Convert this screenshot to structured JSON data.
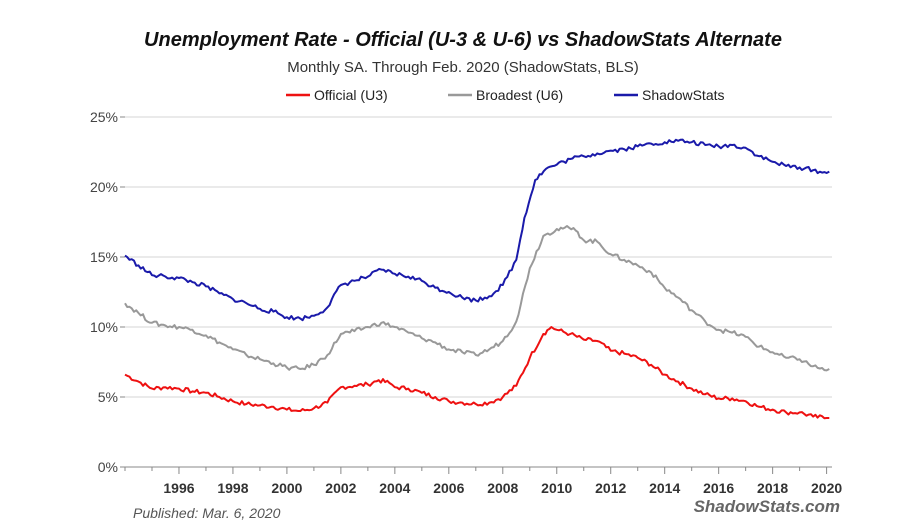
{
  "chart_data": {
    "type": "line",
    "title": "Unemployment Rate - Official (U-3 & U-6) vs ShadowStats Alternate",
    "subtitle": "Monthly SA. Through Feb. 2020  (ShadowStats, BLS)",
    "xlabel": "",
    "ylabel": "",
    "xlim": [
      1994.0,
      2020.2
    ],
    "ylim": [
      0,
      25
    ],
    "y_ticks": [
      0,
      5,
      10,
      15,
      20,
      25
    ],
    "y_tick_labels": [
      "0%",
      "5%",
      "10%",
      "15%",
      "20%",
      "25%"
    ],
    "x_ticks": [
      1996,
      1998,
      2000,
      2002,
      2004,
      2006,
      2008,
      2010,
      2012,
      2014,
      2016,
      2018,
      2020
    ],
    "x_tick_labels": [
      "1996",
      "1998",
      "2000",
      "2002",
      "2004",
      "2006",
      "2008",
      "2010",
      "2012",
      "2014",
      "2016",
      "2018",
      "2020"
    ],
    "grid": true,
    "legend_position": "top-center",
    "series": [
      {
        "name": "Official (U3)",
        "color": "#ee1111",
        "points": [
          [
            1994.0,
            6.6
          ],
          [
            1994.5,
            6.1
          ],
          [
            1995.0,
            5.6
          ],
          [
            1995.5,
            5.7
          ],
          [
            1996.0,
            5.6
          ],
          [
            1996.5,
            5.4
          ],
          [
            1997.0,
            5.3
          ],
          [
            1997.5,
            5.0
          ],
          [
            1998.0,
            4.7
          ],
          [
            1998.5,
            4.5
          ],
          [
            1999.0,
            4.4
          ],
          [
            1999.5,
            4.3
          ],
          [
            2000.0,
            4.1
          ],
          [
            2000.5,
            4.0
          ],
          [
            2001.0,
            4.2
          ],
          [
            2001.5,
            4.6
          ],
          [
            2002.0,
            5.7
          ],
          [
            2002.5,
            5.8
          ],
          [
            2003.0,
            5.9
          ],
          [
            2003.4,
            6.2
          ],
          [
            2003.8,
            6.0
          ],
          [
            2004.0,
            5.7
          ],
          [
            2004.5,
            5.6
          ],
          [
            2005.0,
            5.3
          ],
          [
            2005.5,
            5.0
          ],
          [
            2006.0,
            4.7
          ],
          [
            2006.5,
            4.6
          ],
          [
            2007.0,
            4.5
          ],
          [
            2007.5,
            4.6
          ],
          [
            2008.0,
            5.0
          ],
          [
            2008.5,
            5.8
          ],
          [
            2009.0,
            7.8
          ],
          [
            2009.5,
            9.5
          ],
          [
            2009.8,
            10.0
          ],
          [
            2010.0,
            9.8
          ],
          [
            2010.5,
            9.5
          ],
          [
            2011.0,
            9.1
          ],
          [
            2011.5,
            9.0
          ],
          [
            2012.0,
            8.3
          ],
          [
            2012.5,
            8.1
          ],
          [
            2013.0,
            7.8
          ],
          [
            2013.5,
            7.3
          ],
          [
            2014.0,
            6.6
          ],
          [
            2014.5,
            6.1
          ],
          [
            2015.0,
            5.6
          ],
          [
            2015.5,
            5.2
          ],
          [
            2016.0,
            4.9
          ],
          [
            2016.5,
            4.9
          ],
          [
            2017.0,
            4.7
          ],
          [
            2017.5,
            4.3
          ],
          [
            2018.0,
            4.1
          ],
          [
            2018.5,
            3.9
          ],
          [
            2019.0,
            3.9
          ],
          [
            2019.5,
            3.6
          ],
          [
            2020.0,
            3.5
          ],
          [
            2020.1,
            3.5
          ]
        ]
      },
      {
        "name": "Broadest (U6)",
        "color": "#999999",
        "points": [
          [
            1994.0,
            11.7
          ],
          [
            1994.5,
            11.0
          ],
          [
            1995.0,
            10.3
          ],
          [
            1995.5,
            10.1
          ],
          [
            1996.0,
            10.0
          ],
          [
            1996.5,
            9.8
          ],
          [
            1997.0,
            9.4
          ],
          [
            1997.5,
            8.9
          ],
          [
            1998.0,
            8.4
          ],
          [
            1998.5,
            8.0
          ],
          [
            1999.0,
            7.7
          ],
          [
            1999.5,
            7.4
          ],
          [
            2000.0,
            7.1
          ],
          [
            2000.5,
            7.0
          ],
          [
            2001.0,
            7.3
          ],
          [
            2001.5,
            8.0
          ],
          [
            2002.0,
            9.5
          ],
          [
            2002.5,
            9.7
          ],
          [
            2003.0,
            10.0
          ],
          [
            2003.5,
            10.3
          ],
          [
            2004.0,
            10.0
          ],
          [
            2004.5,
            9.6
          ],
          [
            2005.0,
            9.2
          ],
          [
            2005.5,
            8.9
          ],
          [
            2006.0,
            8.4
          ],
          [
            2006.5,
            8.2
          ],
          [
            2007.0,
            8.0
          ],
          [
            2007.5,
            8.4
          ],
          [
            2008.0,
            9.0
          ],
          [
            2008.5,
            10.4
          ],
          [
            2009.0,
            14.2
          ],
          [
            2009.5,
            16.5
          ],
          [
            2010.0,
            17.0
          ],
          [
            2010.3,
            17.1
          ],
          [
            2010.7,
            16.9
          ],
          [
            2011.0,
            16.2
          ],
          [
            2011.5,
            16.1
          ],
          [
            2012.0,
            15.2
          ],
          [
            2012.5,
            14.8
          ],
          [
            2013.0,
            14.4
          ],
          [
            2013.5,
            13.9
          ],
          [
            2014.0,
            12.8
          ],
          [
            2014.5,
            12.1
          ],
          [
            2015.0,
            11.2
          ],
          [
            2015.5,
            10.4
          ],
          [
            2016.0,
            9.8
          ],
          [
            2016.5,
            9.6
          ],
          [
            2017.0,
            9.3
          ],
          [
            2017.5,
            8.6
          ],
          [
            2018.0,
            8.2
          ],
          [
            2018.5,
            7.8
          ],
          [
            2019.0,
            7.7
          ],
          [
            2019.5,
            7.2
          ],
          [
            2020.0,
            6.9
          ],
          [
            2020.1,
            7.0
          ]
        ]
      },
      {
        "name": "ShadowStats",
        "color": "#1a1aaa",
        "points": [
          [
            1994.0,
            15.1
          ],
          [
            1994.5,
            14.4
          ],
          [
            1995.0,
            13.7
          ],
          [
            1995.5,
            13.6
          ],
          [
            1996.0,
            13.5
          ],
          [
            1996.5,
            13.2
          ],
          [
            1997.0,
            12.9
          ],
          [
            1997.5,
            12.4
          ],
          [
            1998.0,
            12.0
          ],
          [
            1998.5,
            11.7
          ],
          [
            1999.0,
            11.3
          ],
          [
            1999.5,
            11.1
          ],
          [
            2000.0,
            10.7
          ],
          [
            2000.5,
            10.6
          ],
          [
            2001.0,
            10.8
          ],
          [
            2001.5,
            11.4
          ],
          [
            2002.0,
            13.0
          ],
          [
            2002.5,
            13.3
          ],
          [
            2003.0,
            13.6
          ],
          [
            2003.5,
            14.1
          ],
          [
            2004.0,
            13.8
          ],
          [
            2004.5,
            13.6
          ],
          [
            2005.0,
            13.3
          ],
          [
            2005.5,
            12.8
          ],
          [
            2006.0,
            12.5
          ],
          [
            2006.5,
            12.1
          ],
          [
            2007.0,
            11.9
          ],
          [
            2007.5,
            12.2
          ],
          [
            2008.0,
            13.0
          ],
          [
            2008.5,
            14.8
          ],
          [
            2008.8,
            17.8
          ],
          [
            2009.2,
            20.5
          ],
          [
            2009.6,
            21.3
          ],
          [
            2010.0,
            21.6
          ],
          [
            2010.5,
            22.0
          ],
          [
            2011.0,
            22.2
          ],
          [
            2011.5,
            22.4
          ],
          [
            2012.0,
            22.6
          ],
          [
            2012.5,
            22.7
          ],
          [
            2013.0,
            22.9
          ],
          [
            2013.5,
            23.1
          ],
          [
            2014.0,
            23.2
          ],
          [
            2014.5,
            23.3
          ],
          [
            2015.0,
            23.2
          ],
          [
            2015.5,
            23.0
          ],
          [
            2016.0,
            22.9
          ],
          [
            2016.5,
            23.0
          ],
          [
            2017.0,
            22.8
          ],
          [
            2017.5,
            22.2
          ],
          [
            2018.0,
            21.8
          ],
          [
            2018.5,
            21.5
          ],
          [
            2019.0,
            21.4
          ],
          [
            2019.5,
            21.2
          ],
          [
            2020.0,
            21.0
          ],
          [
            2020.1,
            21.1
          ]
        ]
      }
    ]
  },
  "footer": {
    "published": "Published: Mar. 6, 2020",
    "brand": "ShadowStats.com"
  }
}
